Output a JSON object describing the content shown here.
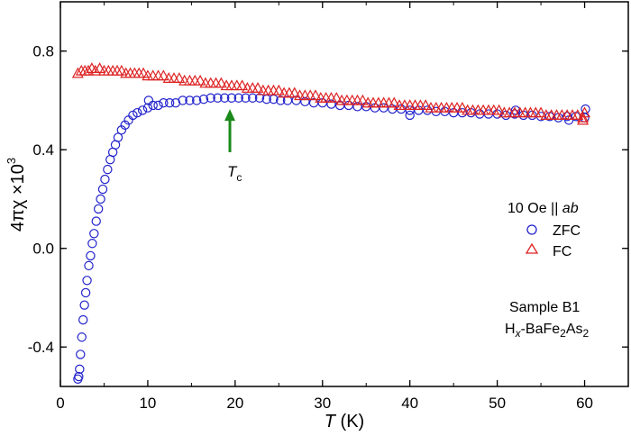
{
  "chart_data": {
    "type": "scatter",
    "xlabel": {
      "italic": "T",
      "rest": " (K)"
    },
    "ylabel": {
      "prefix": "4πχ ×10",
      "sup": "3"
    },
    "xlim": [
      0,
      65
    ],
    "ylim": [
      -0.56,
      1.0
    ],
    "xticks": [
      0,
      10,
      20,
      30,
      40,
      50,
      60
    ],
    "yticks": [
      -0.4,
      0.0,
      0.4,
      0.8
    ],
    "xtick_labels": [
      "0",
      "10",
      "20",
      "30",
      "40",
      "50",
      "60"
    ],
    "ytick_labels": [
      "-0.4",
      "0.0",
      "0.4",
      "0.8"
    ],
    "grid": false,
    "legend": {
      "position": "right",
      "title_text": "10 Oe || ",
      "title_italic": "ab"
    },
    "annotations": {
      "tc": {
        "main": "T",
        "sub": "c",
        "x": 19.4,
        "arrow_from_y": 0.39,
        "arrow_to_y": 0.565,
        "color": "#1a8a1a"
      },
      "sample_line1": "Sample B1",
      "sample_line2": {
        "h": "H",
        "x": "x",
        "mid": "-BaFe",
        "two1": "2",
        "as": "As",
        "two2": "2"
      }
    },
    "series": [
      {
        "name": "ZFC",
        "marker": "circle",
        "color": "#2222cc",
        "points": [
          [
            2.0,
            -0.53
          ],
          [
            2.1,
            -0.52
          ],
          [
            2.2,
            -0.49
          ],
          [
            2.3,
            -0.43
          ],
          [
            2.45,
            -0.36
          ],
          [
            2.6,
            -0.29
          ],
          [
            2.75,
            -0.23
          ],
          [
            2.9,
            -0.18
          ],
          [
            3.05,
            -0.13
          ],
          [
            3.25,
            -0.07
          ],
          [
            3.45,
            -0.03
          ],
          [
            3.65,
            0.02
          ],
          [
            3.85,
            0.06
          ],
          [
            4.1,
            0.11
          ],
          [
            4.35,
            0.16
          ],
          [
            4.6,
            0.2
          ],
          [
            4.85,
            0.24
          ],
          [
            5.1,
            0.28
          ],
          [
            5.4,
            0.32
          ],
          [
            5.7,
            0.36
          ],
          [
            6.0,
            0.39
          ],
          [
            6.3,
            0.42
          ],
          [
            6.6,
            0.45
          ],
          [
            7.0,
            0.48
          ],
          [
            7.4,
            0.5
          ],
          [
            7.8,
            0.52
          ],
          [
            8.3,
            0.54
          ],
          [
            8.8,
            0.55
          ],
          [
            9.4,
            0.56
          ],
          [
            10.0,
            0.57
          ],
          [
            10.6,
            0.58
          ],
          [
            11.2,
            0.58
          ],
          [
            11.8,
            0.59
          ],
          [
            12.5,
            0.59
          ],
          [
            13.2,
            0.59
          ],
          [
            14.0,
            0.6
          ],
          [
            14.8,
            0.6
          ],
          [
            15.6,
            0.6
          ],
          [
            16.4,
            0.605
          ],
          [
            17.2,
            0.61
          ],
          [
            18.0,
            0.61
          ],
          [
            18.8,
            0.61
          ],
          [
            19.6,
            0.61
          ],
          [
            20.4,
            0.61
          ],
          [
            21.2,
            0.61
          ],
          [
            22.0,
            0.61
          ],
          [
            22.8,
            0.61
          ],
          [
            23.6,
            0.605
          ],
          [
            24.4,
            0.605
          ],
          [
            25.2,
            0.6
          ],
          [
            26.0,
            0.6
          ],
          [
            27.0,
            0.6
          ],
          [
            28.0,
            0.595
          ],
          [
            29.0,
            0.59
          ],
          [
            30.0,
            0.59
          ],
          [
            31.0,
            0.585
          ],
          [
            32.0,
            0.58
          ],
          [
            33.0,
            0.58
          ],
          [
            34.0,
            0.575
          ],
          [
            35.0,
            0.575
          ],
          [
            36.0,
            0.57
          ],
          [
            37.0,
            0.57
          ],
          [
            38.0,
            0.565
          ],
          [
            39.0,
            0.565
          ],
          [
            40.0,
            0.56
          ],
          [
            41.0,
            0.56
          ],
          [
            42.0,
            0.56
          ],
          [
            43.0,
            0.555
          ],
          [
            44.0,
            0.555
          ],
          [
            45.0,
            0.55
          ],
          [
            46.0,
            0.55
          ],
          [
            47.0,
            0.55
          ],
          [
            48.0,
            0.545
          ],
          [
            49.0,
            0.545
          ],
          [
            50.0,
            0.545
          ],
          [
            51.0,
            0.54
          ],
          [
            52.0,
            0.545
          ],
          [
            53.0,
            0.54
          ],
          [
            54.0,
            0.54
          ],
          [
            55.0,
            0.535
          ],
          [
            56.0,
            0.535
          ],
          [
            57.0,
            0.53
          ],
          [
            58.0,
            0.535
          ],
          [
            59.0,
            0.535
          ],
          [
            60.0,
            0.53
          ],
          [
            10.1,
            0.6
          ],
          [
            40.0,
            0.54
          ],
          [
            52.1,
            0.56
          ],
          [
            58.2,
            0.52
          ],
          [
            60.1,
            0.565
          ]
        ]
      },
      {
        "name": "FC",
        "marker": "triangle",
        "color": "#dd2222",
        "points": [
          [
            2.0,
            0.71
          ],
          [
            2.4,
            0.72
          ],
          [
            2.8,
            0.72
          ],
          [
            3.2,
            0.72
          ],
          [
            3.6,
            0.73
          ],
          [
            4.0,
            0.72
          ],
          [
            4.5,
            0.73
          ],
          [
            5.0,
            0.72
          ],
          [
            5.5,
            0.72
          ],
          [
            6.0,
            0.72
          ],
          [
            6.5,
            0.72
          ],
          [
            7.0,
            0.72
          ],
          [
            7.5,
            0.71
          ],
          [
            8.0,
            0.71
          ],
          [
            8.5,
            0.71
          ],
          [
            9.0,
            0.71
          ],
          [
            9.5,
            0.71
          ],
          [
            10.0,
            0.7
          ],
          [
            10.6,
            0.7
          ],
          [
            11.2,
            0.7
          ],
          [
            11.8,
            0.7
          ],
          [
            12.4,
            0.69
          ],
          [
            13.0,
            0.69
          ],
          [
            13.6,
            0.69
          ],
          [
            14.2,
            0.68
          ],
          [
            14.8,
            0.68
          ],
          [
            15.4,
            0.68
          ],
          [
            16.0,
            0.68
          ],
          [
            16.6,
            0.67
          ],
          [
            17.2,
            0.67
          ],
          [
            17.8,
            0.67
          ],
          [
            18.4,
            0.67
          ],
          [
            19.0,
            0.66
          ],
          [
            19.6,
            0.66
          ],
          [
            20.2,
            0.66
          ],
          [
            20.8,
            0.66
          ],
          [
            21.4,
            0.65
          ],
          [
            22.0,
            0.65
          ],
          [
            22.6,
            0.65
          ],
          [
            23.2,
            0.64
          ],
          [
            23.8,
            0.64
          ],
          [
            24.4,
            0.64
          ],
          [
            25.0,
            0.64
          ],
          [
            25.6,
            0.63
          ],
          [
            26.2,
            0.63
          ],
          [
            26.8,
            0.63
          ],
          [
            27.4,
            0.62
          ],
          [
            28.0,
            0.62
          ],
          [
            28.6,
            0.62
          ],
          [
            29.2,
            0.62
          ],
          [
            29.8,
            0.61
          ],
          [
            30.4,
            0.61
          ],
          [
            31.0,
            0.61
          ],
          [
            31.6,
            0.61
          ],
          [
            32.2,
            0.6
          ],
          [
            32.8,
            0.6
          ],
          [
            33.4,
            0.6
          ],
          [
            34.0,
            0.6
          ],
          [
            34.6,
            0.6
          ],
          [
            35.2,
            0.59
          ],
          [
            35.8,
            0.59
          ],
          [
            36.4,
            0.59
          ],
          [
            37.0,
            0.59
          ],
          [
            37.6,
            0.59
          ],
          [
            38.2,
            0.59
          ],
          [
            38.8,
            0.58
          ],
          [
            39.4,
            0.58
          ],
          [
            40.0,
            0.58
          ],
          [
            40.6,
            0.58
          ],
          [
            41.2,
            0.58
          ],
          [
            41.8,
            0.58
          ],
          [
            42.4,
            0.57
          ],
          [
            43.0,
            0.57
          ],
          [
            43.6,
            0.57
          ],
          [
            44.2,
            0.57
          ],
          [
            44.8,
            0.57
          ],
          [
            45.4,
            0.57
          ],
          [
            46.0,
            0.57
          ],
          [
            46.6,
            0.56
          ],
          [
            47.2,
            0.56
          ],
          [
            47.8,
            0.56
          ],
          [
            48.4,
            0.56
          ],
          [
            49.0,
            0.56
          ],
          [
            49.6,
            0.56
          ],
          [
            50.2,
            0.56
          ],
          [
            50.8,
            0.55
          ],
          [
            51.4,
            0.55
          ],
          [
            52.0,
            0.55
          ],
          [
            52.6,
            0.55
          ],
          [
            53.2,
            0.55
          ],
          [
            53.8,
            0.55
          ],
          [
            54.4,
            0.55
          ],
          [
            55.0,
            0.55
          ],
          [
            55.6,
            0.54
          ],
          [
            56.2,
            0.54
          ],
          [
            56.8,
            0.54
          ],
          [
            57.4,
            0.54
          ],
          [
            58.0,
            0.54
          ],
          [
            58.6,
            0.54
          ],
          [
            59.2,
            0.54
          ],
          [
            59.8,
            0.53
          ],
          [
            60.0,
            0.55
          ],
          [
            59.8,
            0.52
          ]
        ]
      }
    ]
  }
}
